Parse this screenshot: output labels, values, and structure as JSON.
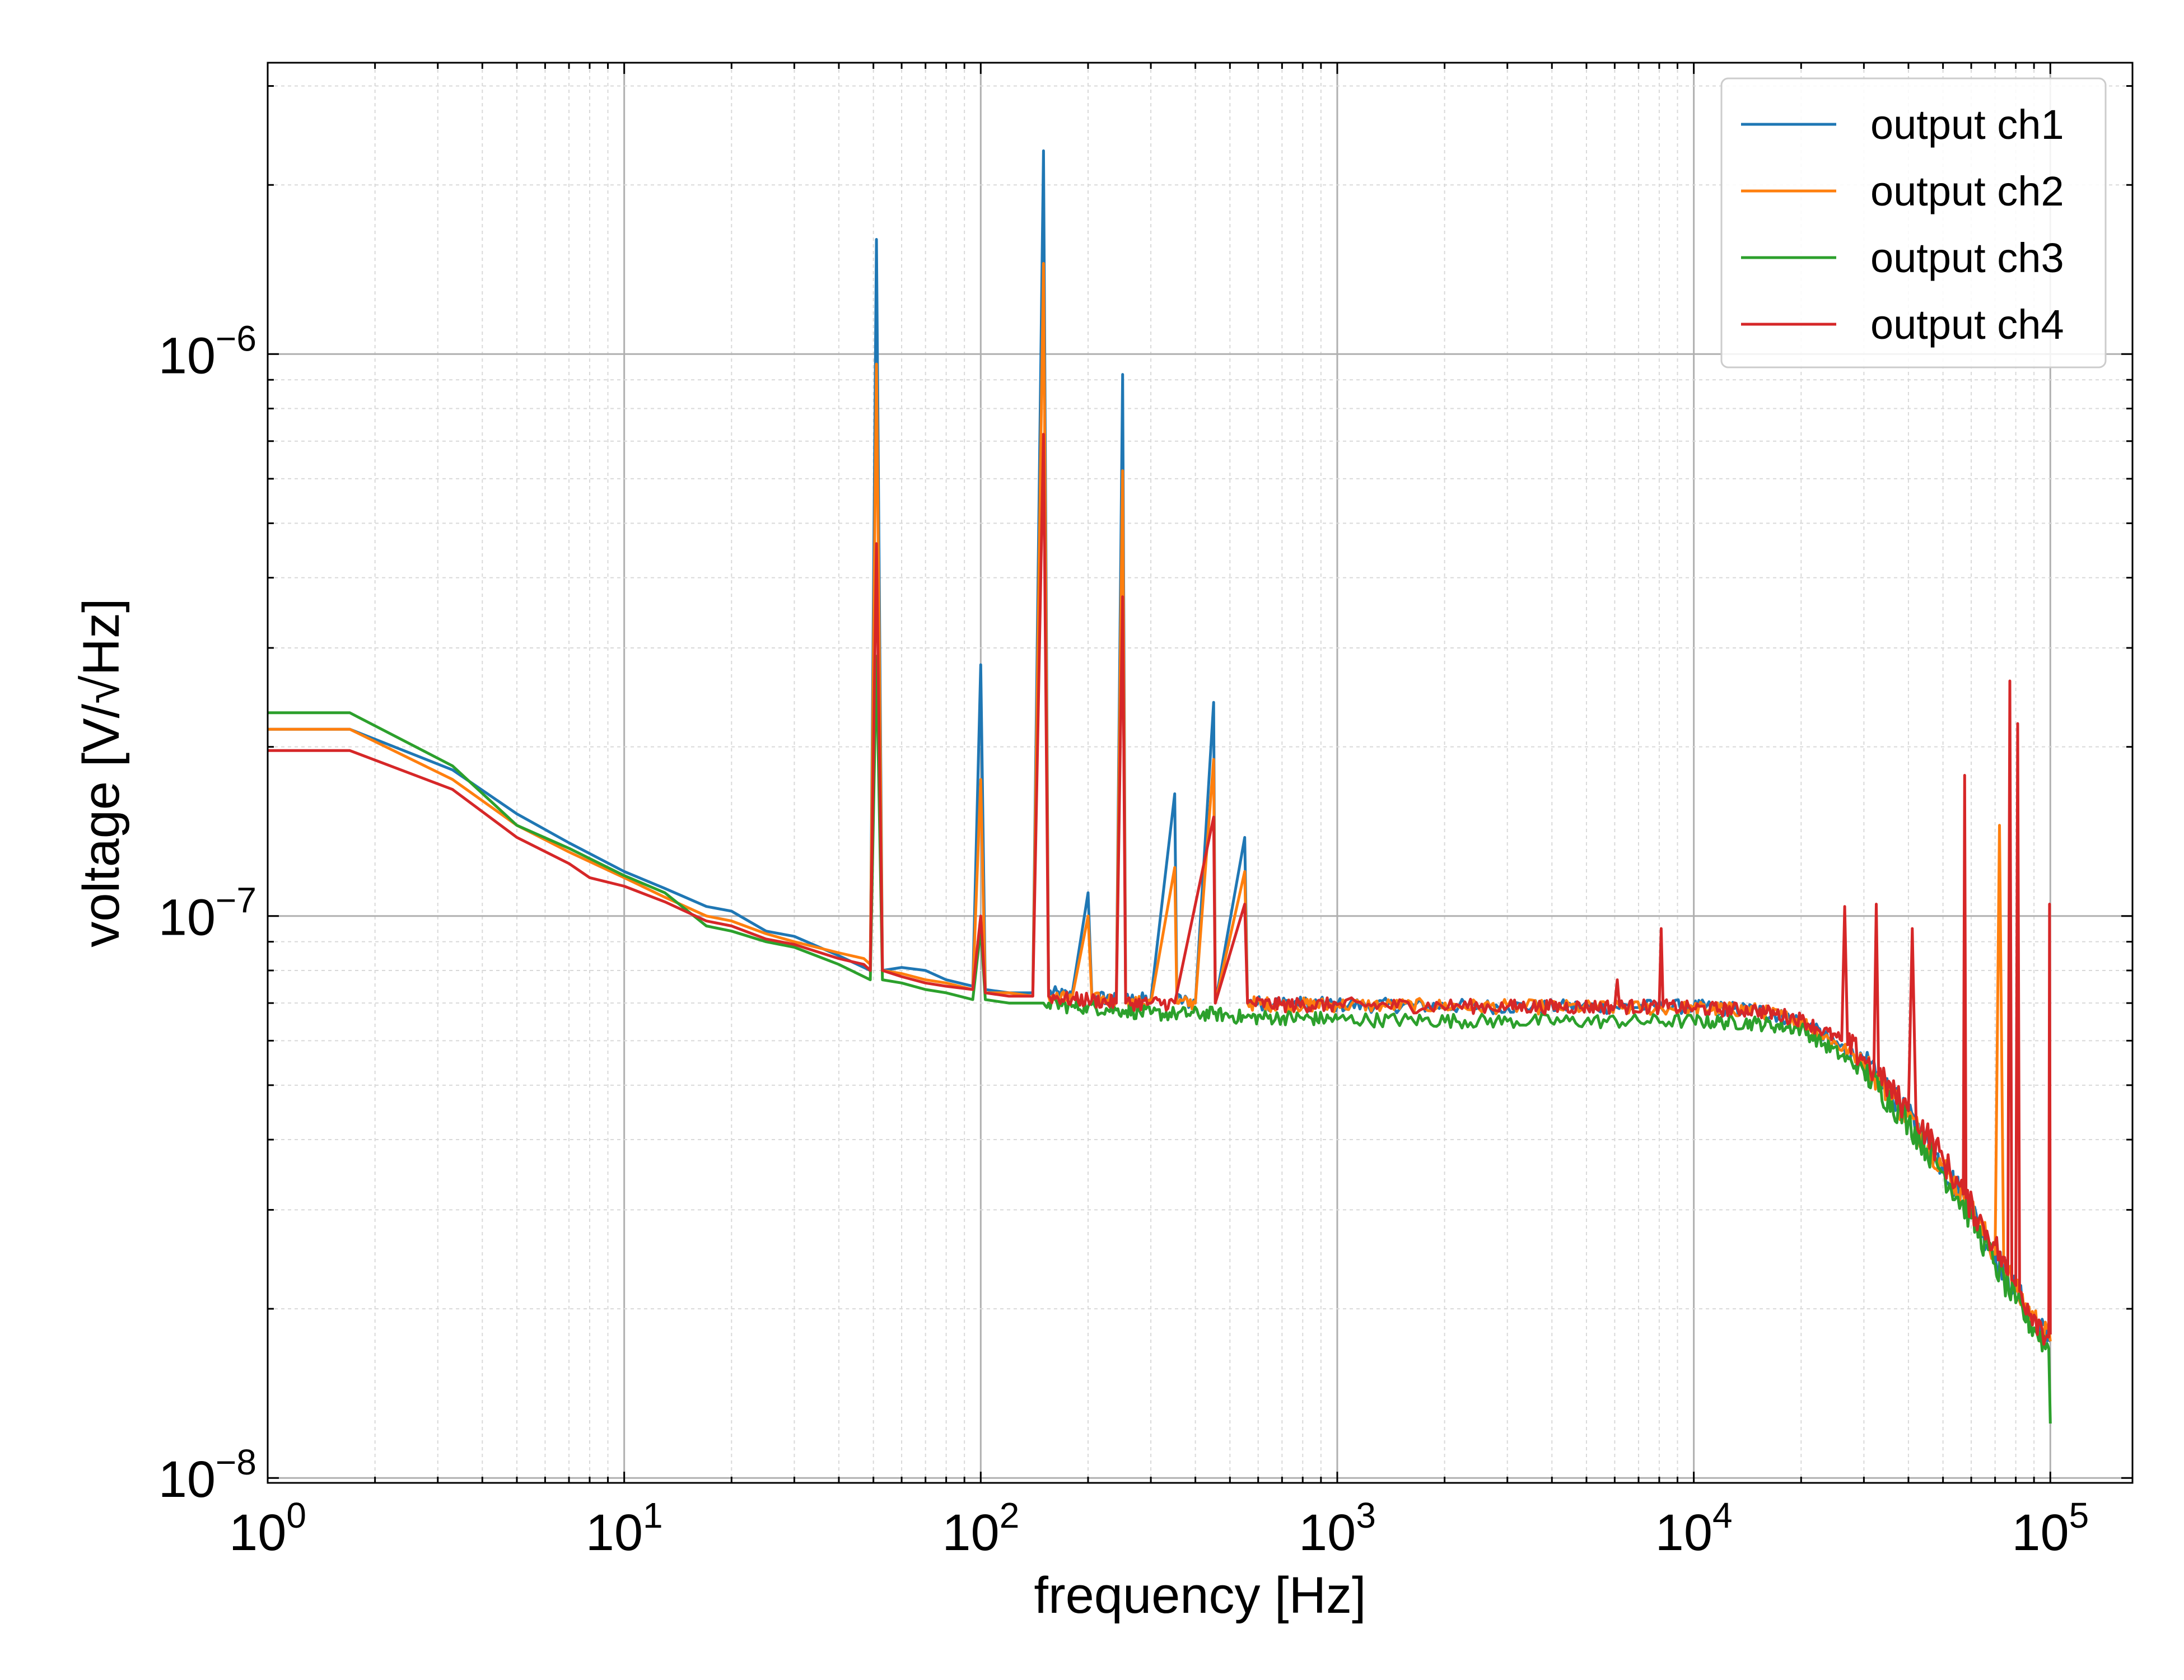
{
  "chart_data": {
    "type": "line",
    "title": "",
    "xlabel": "frequency [Hz]",
    "ylabel": "voltage [V/√Hz]",
    "x_scale": "log",
    "y_scale": "log",
    "xlim": [
      1,
      170000
    ],
    "ylim": [
      9.8e-09,
      3.3e-06
    ],
    "grid": true,
    "legend_position": "top-right",
    "x_ticks": [
      {
        "value": 1,
        "label": "10^0"
      },
      {
        "value": 10,
        "label": "10^1"
      },
      {
        "value": 100,
        "label": "10^2"
      },
      {
        "value": 1000,
        "label": "10^3"
      },
      {
        "value": 10000,
        "label": "10^4"
      },
      {
        "value": 100000,
        "label": "10^5"
      }
    ],
    "y_ticks": [
      {
        "value": 1e-08,
        "label": "10^−8"
      },
      {
        "value": 1e-07,
        "label": "10^−7"
      },
      {
        "value": 1e-06,
        "label": "10^−6"
      }
    ],
    "series": [
      {
        "name": "output ch1",
        "color": "#1f77b4",
        "points": [
          [
            1,
            2.15e-07
          ],
          [
            1.7,
            2.15e-07
          ],
          [
            3.3,
            1.82e-07
          ],
          [
            5,
            1.52e-07
          ],
          [
            7,
            1.35e-07
          ],
          [
            10,
            1.2e-07
          ],
          [
            13,
            1.12e-07
          ],
          [
            17,
            1.04e-07
          ],
          [
            20,
            1.02e-07
          ],
          [
            25,
            9.4e-08
          ],
          [
            30,
            9.2e-08
          ],
          [
            40,
            8.5e-08
          ],
          [
            47,
            8.1e-08
          ],
          [
            49,
            8e-08
          ],
          [
            51,
            1.6e-06
          ],
          [
            53,
            8e-08
          ],
          [
            60,
            8.1e-08
          ],
          [
            70,
            8e-08
          ],
          [
            80,
            7.7e-08
          ],
          [
            95,
            7.5e-08
          ],
          [
            100,
            2.8e-07
          ],
          [
            103,
            7.4e-08
          ],
          [
            120,
            7.3e-08
          ],
          [
            140,
            7.3e-08
          ],
          [
            150,
            2.3e-06
          ],
          [
            155,
            7.3e-08
          ],
          [
            180,
            7.2e-08
          ],
          [
            200,
            1.1e-07
          ],
          [
            205,
            7.2e-08
          ],
          [
            240,
            7.1e-08
          ],
          [
            250,
            9.2e-07
          ],
          [
            255,
            7.1e-08
          ],
          [
            300,
            7.1e-08
          ],
          [
            350,
            1.65e-07
          ],
          [
            355,
            7.1e-08
          ],
          [
            400,
            7e-08
          ],
          [
            450,
            2.4e-07
          ],
          [
            455,
            7e-08
          ],
          [
            550,
            1.38e-07
          ],
          [
            560,
            7e-08
          ],
          [
            700,
            7e-08
          ],
          [
            1000,
            6.95e-08
          ],
          [
            3000,
            6.9e-08
          ],
          [
            10000,
            6.9e-08
          ],
          [
            15000,
            6.8e-08
          ],
          [
            20000,
            6.5e-08
          ],
          [
            30000,
            5.5e-08
          ],
          [
            40000,
            4.4e-08
          ],
          [
            50000,
            3.6e-08
          ],
          [
            60000,
            3e-08
          ],
          [
            70000,
            2.5e-08
          ],
          [
            80000,
            2.15e-08
          ],
          [
            90000,
            1.92e-08
          ],
          [
            100000,
            1.75e-08
          ]
        ]
      },
      {
        "name": "output ch2",
        "color": "#ff7f0e",
        "points": [
          [
            1,
            2.15e-07
          ],
          [
            1.7,
            2.15e-07
          ],
          [
            3.3,
            1.75e-07
          ],
          [
            5,
            1.45e-07
          ],
          [
            7,
            1.3e-07
          ],
          [
            10,
            1.17e-07
          ],
          [
            13,
            1.08e-07
          ],
          [
            17,
            1e-07
          ],
          [
            20,
            9.8e-08
          ],
          [
            25,
            9.3e-08
          ],
          [
            30,
            9e-08
          ],
          [
            40,
            8.6e-08
          ],
          [
            47,
            8.4e-08
          ],
          [
            49,
            8.2e-08
          ],
          [
            51,
            9.6e-07
          ],
          [
            53,
            8e-08
          ],
          [
            60,
            7.9e-08
          ],
          [
            70,
            7.7e-08
          ],
          [
            80,
            7.6e-08
          ],
          [
            95,
            7.4e-08
          ],
          [
            100,
            1.75e-07
          ],
          [
            103,
            7.3e-08
          ],
          [
            120,
            7.3e-08
          ],
          [
            140,
            7.2e-08
          ],
          [
            150,
            1.45e-06
          ],
          [
            155,
            7.2e-08
          ],
          [
            180,
            7.1e-08
          ],
          [
            200,
            1e-07
          ],
          [
            205,
            7.1e-08
          ],
          [
            240,
            7.1e-08
          ],
          [
            250,
            6.2e-07
          ],
          [
            255,
            7e-08
          ],
          [
            300,
            7e-08
          ],
          [
            350,
            1.22e-07
          ],
          [
            355,
            7e-08
          ],
          [
            400,
            7e-08
          ],
          [
            450,
            1.9e-07
          ],
          [
            455,
            7e-08
          ],
          [
            550,
            1.2e-07
          ],
          [
            560,
            7e-08
          ],
          [
            700,
            6.95e-08
          ],
          [
            1000,
            6.95e-08
          ],
          [
            3000,
            6.9e-08
          ],
          [
            10000,
            6.85e-08
          ],
          [
            15000,
            6.8e-08
          ],
          [
            20000,
            6.5e-08
          ],
          [
            30000,
            5.5e-08
          ],
          [
            40000,
            4.4e-08
          ],
          [
            50000,
            3.6e-08
          ],
          [
            60000,
            3e-08
          ],
          [
            70000,
            2.5e-08
          ],
          [
            72000,
            1.45e-07
          ],
          [
            74000,
            2.45e-08
          ],
          [
            80000,
            2.15e-08
          ],
          [
            90000,
            1.92e-08
          ],
          [
            100000,
            1.75e-08
          ]
        ]
      },
      {
        "name": "output ch3",
        "color": "#2ca02c",
        "points": [
          [
            1,
            2.3e-07
          ],
          [
            1.7,
            2.3e-07
          ],
          [
            3.3,
            1.85e-07
          ],
          [
            5,
            1.45e-07
          ],
          [
            7,
            1.32e-07
          ],
          [
            10,
            1.18e-07
          ],
          [
            13,
            1.1e-07
          ],
          [
            17,
            9.6e-08
          ],
          [
            20,
            9.4e-08
          ],
          [
            25,
            9e-08
          ],
          [
            30,
            8.8e-08
          ],
          [
            40,
            8.2e-08
          ],
          [
            47,
            7.8e-08
          ],
          [
            49,
            7.7e-08
          ],
          [
            51,
            2.9e-07
          ],
          [
            53,
            7.7e-08
          ],
          [
            60,
            7.6e-08
          ],
          [
            70,
            7.4e-08
          ],
          [
            80,
            7.3e-08
          ],
          [
            95,
            7.1e-08
          ],
          [
            100,
            9.5e-08
          ],
          [
            103,
            7.1e-08
          ],
          [
            120,
            7e-08
          ],
          [
            140,
            7e-08
          ],
          [
            150,
            7e-08
          ],
          [
            155,
            7e-08
          ],
          [
            180,
            6.9e-08
          ],
          [
            200,
            6.9e-08
          ],
          [
            240,
            6.8e-08
          ],
          [
            250,
            6.8e-08
          ],
          [
            300,
            6.7e-08
          ],
          [
            350,
            6.7e-08
          ],
          [
            450,
            6.7e-08
          ],
          [
            550,
            6.6e-08
          ],
          [
            700,
            6.6e-08
          ],
          [
            1000,
            6.55e-08
          ],
          [
            3000,
            6.5e-08
          ],
          [
            10000,
            6.5e-08
          ],
          [
            15000,
            6.45e-08
          ],
          [
            20000,
            6.3e-08
          ],
          [
            30000,
            5.3e-08
          ],
          [
            40000,
            4.3e-08
          ],
          [
            50000,
            3.5e-08
          ],
          [
            60000,
            2.9e-08
          ],
          [
            70000,
            2.4e-08
          ],
          [
            80000,
            2.05e-08
          ],
          [
            90000,
            1.85e-08
          ],
          [
            99000,
            1.7e-08
          ],
          [
            100000,
            1.25e-08
          ]
        ]
      },
      {
        "name": "output ch4",
        "color": "#d62728",
        "points": [
          [
            1,
            1.97e-07
          ],
          [
            1.7,
            1.97e-07
          ],
          [
            3.3,
            1.68e-07
          ],
          [
            5,
            1.38e-07
          ],
          [
            7,
            1.24e-07
          ],
          [
            8,
            1.17e-07
          ],
          [
            10,
            1.13e-07
          ],
          [
            13,
            1.06e-07
          ],
          [
            17,
            9.8e-08
          ],
          [
            20,
            9.6e-08
          ],
          [
            25,
            9.1e-08
          ],
          [
            30,
            8.9e-08
          ],
          [
            40,
            8.4e-08
          ],
          [
            47,
            8.2e-08
          ],
          [
            49,
            8e-08
          ],
          [
            51,
            4.6e-07
          ],
          [
            53,
            8e-08
          ],
          [
            60,
            7.8e-08
          ],
          [
            70,
            7.6e-08
          ],
          [
            80,
            7.5e-08
          ],
          [
            95,
            7.4e-08
          ],
          [
            100,
            1e-07
          ],
          [
            103,
            7.3e-08
          ],
          [
            120,
            7.2e-08
          ],
          [
            140,
            7.2e-08
          ],
          [
            150,
            7.2e-07
          ],
          [
            155,
            7.2e-08
          ],
          [
            180,
            7.1e-08
          ],
          [
            200,
            7.1e-08
          ],
          [
            240,
            7e-08
          ],
          [
            250,
            3.7e-07
          ],
          [
            255,
            7e-08
          ],
          [
            300,
            7e-08
          ],
          [
            350,
            7e-08
          ],
          [
            450,
            1.5e-07
          ],
          [
            455,
            7e-08
          ],
          [
            550,
            1.05e-07
          ],
          [
            560,
            7e-08
          ],
          [
            700,
            6.95e-08
          ],
          [
            1000,
            6.95e-08
          ],
          [
            3000,
            6.9e-08
          ],
          [
            6000,
            6.9e-08
          ],
          [
            6100,
            7.7e-08
          ],
          [
            6200,
            6.9e-08
          ],
          [
            8000,
            6.9e-08
          ],
          [
            8100,
            9.5e-08
          ],
          [
            8200,
            6.9e-08
          ],
          [
            10000,
            6.85e-08
          ],
          [
            15000,
            6.8e-08
          ],
          [
            20000,
            6.55e-08
          ],
          [
            26000,
            6e-08
          ],
          [
            26500,
            1.04e-07
          ],
          [
            27000,
            5.9e-08
          ],
          [
            30000,
            5.6e-08
          ],
          [
            32000,
            5.3e-08
          ],
          [
            32500,
            1.05e-07
          ],
          [
            33000,
            5.2e-08
          ],
          [
            40000,
            4.5e-08
          ],
          [
            41000,
            9.5e-08
          ],
          [
            42000,
            4.4e-08
          ],
          [
            50000,
            3.7e-08
          ],
          [
            57000,
            3.2e-08
          ],
          [
            57500,
            1.78e-07
          ],
          [
            58000,
            3.15e-08
          ],
          [
            65000,
            2.8e-08
          ],
          [
            70000,
            2.6e-08
          ],
          [
            76000,
            2.3e-08
          ],
          [
            77000,
            2.62e-07
          ],
          [
            78000,
            2.25e-08
          ],
          [
            80000,
            2.2e-08
          ],
          [
            81000,
            2.2e-07
          ],
          [
            82000,
            2.15e-08
          ],
          [
            90000,
            1.95e-08
          ],
          [
            99000,
            1.78e-08
          ],
          [
            99500,
            1.05e-07
          ],
          [
            100000,
            1.8e-08
          ]
        ]
      }
    ]
  }
}
